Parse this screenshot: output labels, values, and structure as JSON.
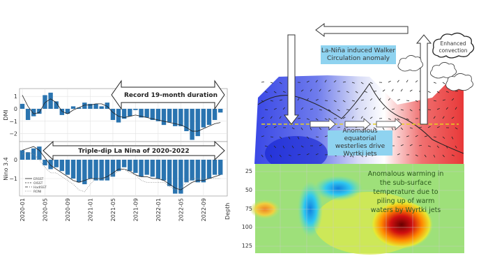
{
  "chart_data": [
    {
      "type": "bar",
      "panel": "top",
      "ylabel": "DMI",
      "ylim": [
        -2.7,
        1.6
      ],
      "yticks": [
        1,
        0,
        -1,
        -2
      ],
      "bar_color": "#2a74b0",
      "grid": true,
      "categories": [
        "2020-01",
        "2020-02",
        "2020-03",
        "2020-04",
        "2020-05",
        "2020-06",
        "2020-07",
        "2020-08",
        "2020-09",
        "2020-10",
        "2020-11",
        "2020-12",
        "2021-01",
        "2021-02",
        "2021-03",
        "2021-04",
        "2021-05",
        "2021-06",
        "2021-07",
        "2021-08",
        "2021-09",
        "2021-10",
        "2021-11",
        "2021-12",
        "2022-01",
        "2022-02",
        "2022-03",
        "2022-04",
        "2022-05",
        "2022-06",
        "2022-07",
        "2022-08",
        "2022-09",
        "2022-10",
        "2022-11",
        "2022-12"
      ],
      "values": [
        0.4,
        -0.9,
        -0.6,
        -0.4,
        1.1,
        1.3,
        0.6,
        -0.5,
        -0.4,
        0.2,
        0.1,
        0.5,
        0.4,
        0.4,
        0.2,
        0.5,
        -0.9,
        -1.1,
        -0.8,
        -0.6,
        -0.1,
        -0.7,
        -0.7,
        -0.9,
        -1.0,
        -1.3,
        -1.1,
        -1.4,
        -1.4,
        -1.8,
        -2.5,
        -2.2,
        -1.5,
        -1.3,
        -0.9,
        -0.3
      ],
      "lines": [
        {
          "values": [
            1.1,
            0.2,
            -0.4,
            -0.3,
            0.5,
            0.8,
            0.5,
            -0.2,
            -0.4,
            -0.1,
            0.1,
            0.3,
            0.3,
            0.4,
            0.4,
            0.2,
            -0.3,
            -0.6,
            -0.7,
            -0.6,
            -0.5,
            -0.6,
            -0.7,
            -0.8,
            -0.9,
            -1.0,
            -1.1,
            -1.2,
            -1.3,
            -1.5,
            -1.8,
            -1.8,
            -1.6,
            -1.4,
            -1.2,
            -1.1
          ]
        }
      ],
      "annotation": "Record 19-month duration"
    },
    {
      "type": "bar",
      "panel": "bottom",
      "ylabel": "Nino 3.4",
      "ylim": [
        -1.9,
        1.0
      ],
      "yticks": [
        0,
        -1
      ],
      "bar_color": "#2a74b0",
      "grid": true,
      "xticks": [
        "2020-01",
        "2020-05",
        "2020-09",
        "2021-01",
        "2021-05",
        "2021-09",
        "2022-01",
        "2022-05",
        "2022-09"
      ],
      "values": [
        0.5,
        0.4,
        0.6,
        0.7,
        -0.3,
        -0.5,
        -0.4,
        -0.6,
        -0.8,
        -1.0,
        -1.2,
        -1.3,
        -1.0,
        -1.1,
        -1.1,
        -1.1,
        -0.9,
        -0.6,
        -0.4,
        -0.6,
        -0.7,
        -0.9,
        -0.8,
        -0.9,
        -1.0,
        -1.1,
        -1.4,
        -1.8,
        -1.8,
        -1.2,
        -1.1,
        -1.2,
        -1.2,
        -1.0,
        -0.8,
        -0.8
      ],
      "legend": [
        "ERSST",
        "OISST",
        "HadISST",
        "RONI"
      ],
      "legend_placement": "lower-left",
      "lines": [
        {
          "name": "ERSST",
          "values": [
            0.5,
            0.6,
            0.7,
            0.5,
            0.1,
            -0.3,
            -0.5,
            -0.7,
            -0.9,
            -1.1,
            -1.2,
            -1.1,
            -1.0,
            -1.0,
            -1.0,
            -0.9,
            -0.7,
            -0.5,
            -0.5,
            -0.6,
            -0.8,
            -0.9,
            -0.9,
            -1.0,
            -1.0,
            -1.1,
            -1.3,
            -1.5,
            -1.6,
            -1.4,
            -1.2,
            -1.1,
            -1.1,
            -1.0,
            -0.9,
            -0.8
          ]
        },
        {
          "name": "RONI",
          "values": [
            0.3,
            0.4,
            0.3,
            0.0,
            -0.4,
            -0.7,
            -0.7,
            -0.9,
            -1.1,
            -1.3,
            -1.6,
            -1.7,
            -1.3,
            -1.0,
            -1.0,
            -1.0,
            -0.8,
            -0.6,
            -0.5,
            -0.7,
            -0.8,
            -1.1,
            -1.2,
            -1.2,
            -1.2,
            -1.2,
            -1.4,
            -1.6,
            -1.5,
            -1.2,
            -1.0,
            -1.0,
            -1.0,
            -1.0,
            -1.0,
            -1.0
          ]
        }
      ],
      "annotation": "Triple-dip La Nina of 2020-2022"
    },
    {
      "type": "heatmap",
      "panel": "sub-surface",
      "ylabel": "Depth",
      "yticks": [
        25,
        50,
        75,
        100,
        125
      ]
    }
  ],
  "diagram": {
    "walker_label": "La-Niña induced Walker Circulation anomaly",
    "convection_label": "Enhanced convection",
    "westerlies_label": "Anomalous equatorial westerlies drive Wyrtki jets",
    "warming_label": "Anomalous warming in the sub-surface temperature due to piling up of warm waters by Wyrtki jets",
    "colors": {
      "cold": "#2f3fe0",
      "warm": "#e83030",
      "label_box": "#8fd3f0",
      "equator_line": "#e8d020"
    }
  }
}
